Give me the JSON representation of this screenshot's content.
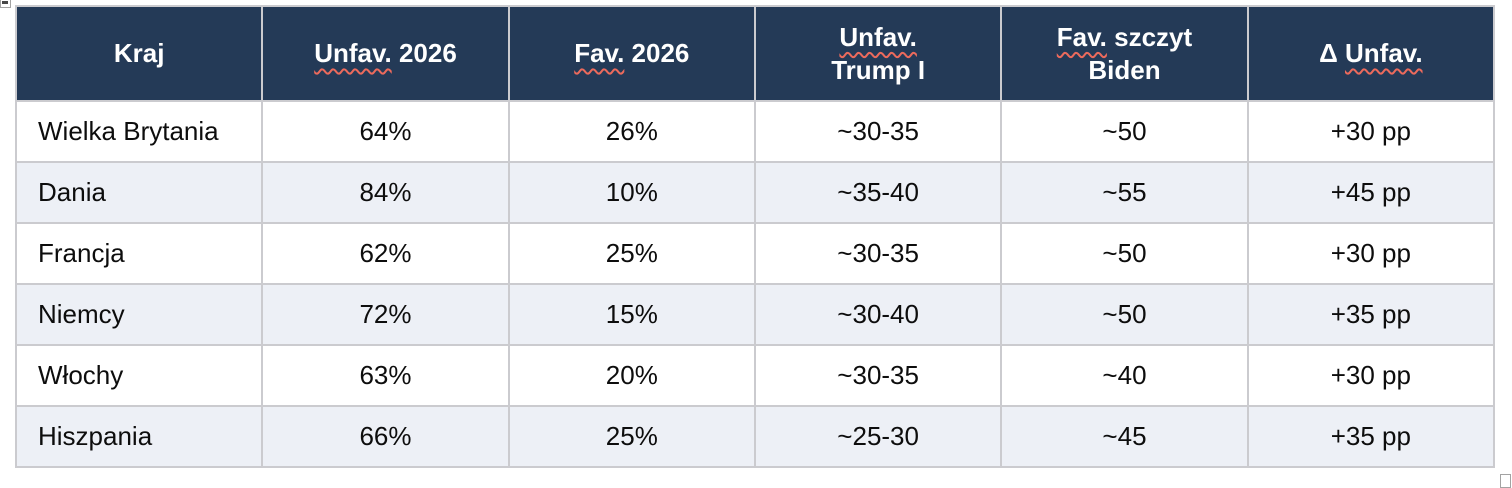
{
  "table": {
    "columns": [
      {
        "id": "kraj",
        "label": "Kraj",
        "flag": null
      },
      {
        "id": "unfav-2026",
        "label": "Unfav. 2026",
        "flag": "Unfav."
      },
      {
        "id": "fav-2026",
        "label": "Fav. 2026",
        "flag": "Fav."
      },
      {
        "id": "unfav-trump-i",
        "label": "Unfav.\nTrump I",
        "flag": "Unfav."
      },
      {
        "id": "fav-szczyt-biden",
        "label": "Fav. szczyt\nBiden",
        "flag": "Fav."
      },
      {
        "id": "delta-unfav",
        "label": "Δ Unfav.",
        "flag": "Unfav."
      }
    ],
    "rows": [
      [
        "Wielka Brytania",
        "64%",
        "26%",
        "~30-35",
        "~50",
        "+30 pp"
      ],
      [
        "Dania",
        "84%",
        "10%",
        "~35-40",
        "~55",
        "+45 pp"
      ],
      [
        "Francja",
        "62%",
        "25%",
        "~30-35",
        "~50",
        "+30 pp"
      ],
      [
        "Niemcy",
        "72%",
        "15%",
        "~30-40",
        "~50",
        "+35 pp"
      ],
      [
        "Włochy",
        "63%",
        "20%",
        "~30-35",
        "~40",
        "+30 pp"
      ],
      [
        "Hiszpania",
        "66%",
        "25%",
        "~25-30",
        "~45",
        "+35 pp"
      ]
    ]
  },
  "colors": {
    "header_bg": "#243a57",
    "header_text": "#ffffff",
    "row_alt_bg": "#edf0f6",
    "border": "#cbcbcf",
    "spellcheck_squiggle": "#ec6a5c"
  }
}
